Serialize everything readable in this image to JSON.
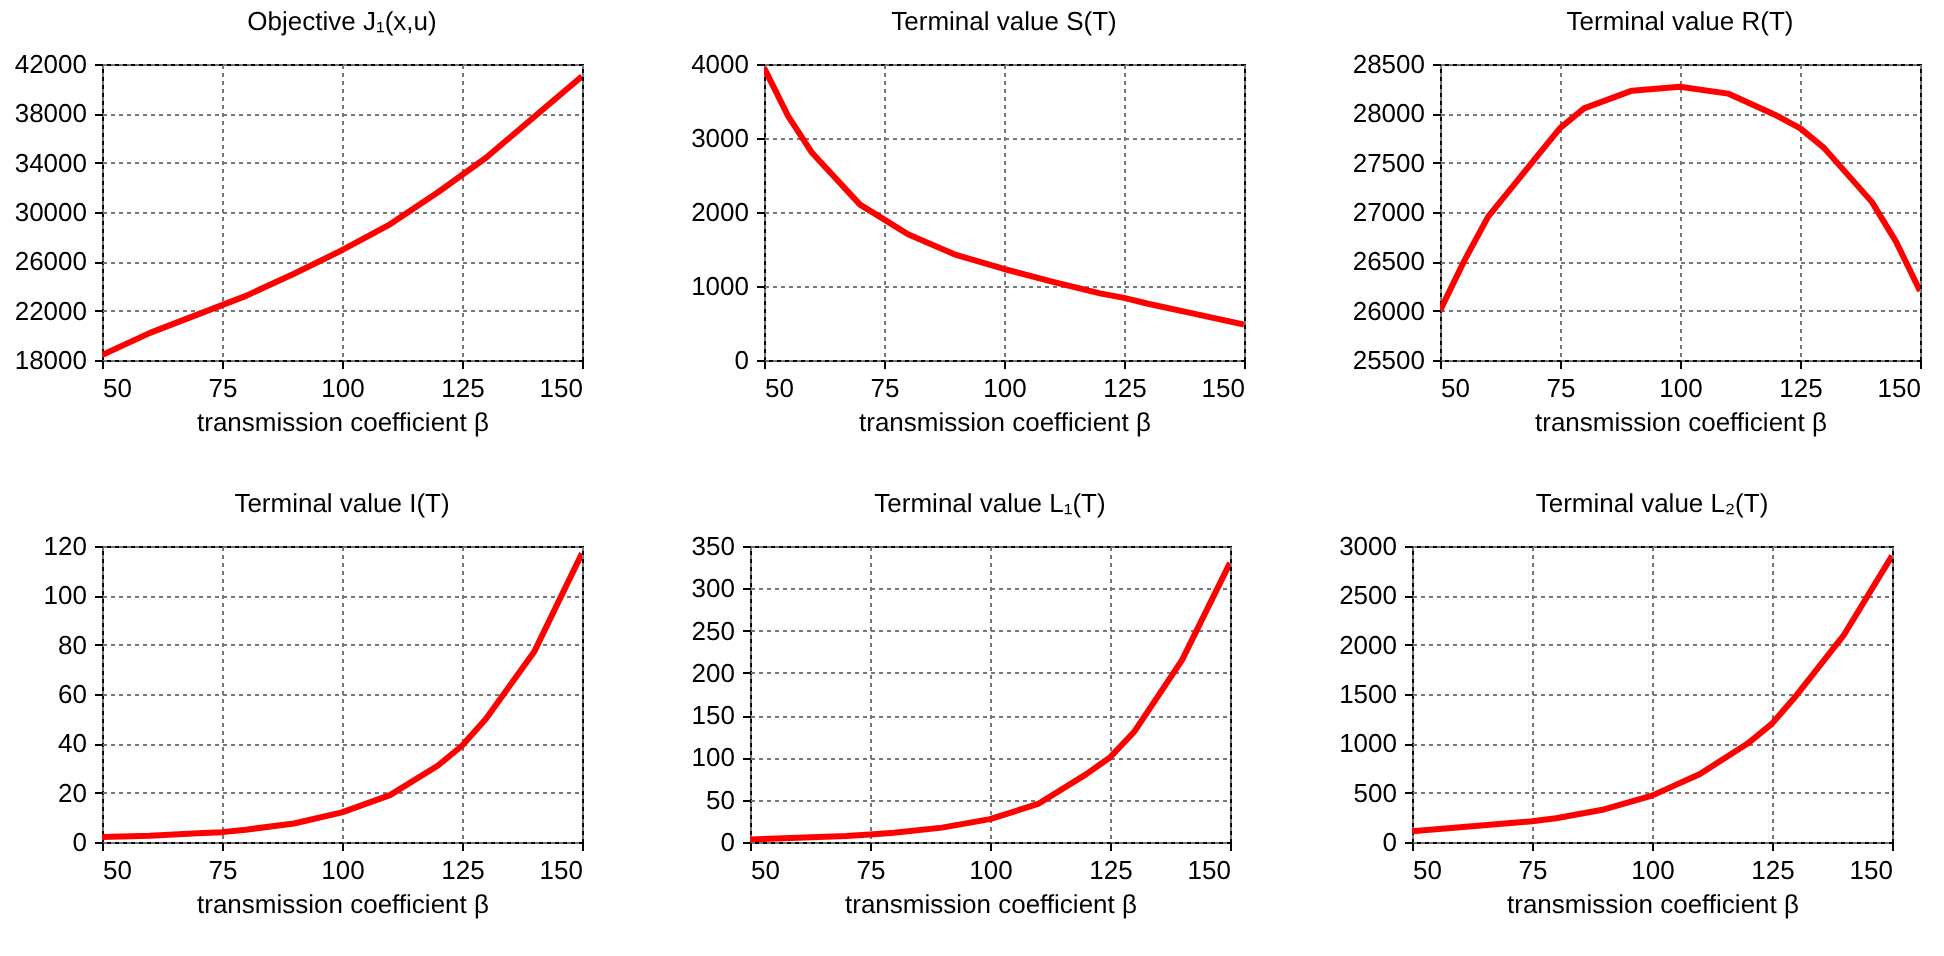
{
  "chart_data": [
    {
      "type": "line",
      "title": "Objective  J₁(x,u)",
      "xlabel": "transmission coefficient  β",
      "x": [
        50,
        60,
        70,
        80,
        90,
        100,
        110,
        120,
        130,
        140,
        150
      ],
      "values": [
        18400,
        20200,
        21700,
        23200,
        25000,
        26900,
        29000,
        31600,
        34400,
        37700,
        41000
      ],
      "color": "#ff0000",
      "xlim": [
        50,
        150
      ],
      "xticks": [
        50,
        75,
        100,
        125,
        150
      ],
      "ylim": [
        18000,
        42000
      ],
      "yticks": [
        18000,
        22000,
        26000,
        30000,
        34000,
        38000,
        42000
      ],
      "grid": true
    },
    {
      "type": "line",
      "title": "Terminal value  S(T)",
      "xlabel": "transmission coefficient  β",
      "x": [
        50,
        55,
        60,
        70,
        75,
        80,
        90,
        100,
        110,
        120,
        125,
        130,
        140,
        150
      ],
      "values": [
        3950,
        3300,
        2800,
        2100,
        1900,
        1700,
        1420,
        1230,
        1060,
        900,
        840,
        760,
        620,
        480
      ],
      "color": "#ff0000",
      "xlim": [
        50,
        150
      ],
      "xticks": [
        50,
        75,
        100,
        125,
        150
      ],
      "ylim": [
        0,
        4000
      ],
      "yticks": [
        0,
        1000,
        2000,
        3000,
        4000
      ],
      "grid": true
    },
    {
      "type": "line",
      "title": "Terminal value  R(T)",
      "xlabel": "transmission coefficient  β",
      "x": [
        50,
        55,
        60,
        70,
        75,
        80,
        90,
        100,
        110,
        120,
        125,
        130,
        140,
        145,
        150
      ],
      "values": [
        26000,
        26500,
        26950,
        27550,
        27850,
        28050,
        28230,
        28270,
        28200,
        27980,
        27850,
        27650,
        27100,
        26700,
        26200
      ],
      "color": "#ff0000",
      "xlim": [
        50,
        150
      ],
      "xticks": [
        50,
        75,
        100,
        125,
        150
      ],
      "ylim": [
        25500,
        28500
      ],
      "yticks": [
        25500,
        26000,
        26500,
        27000,
        27500,
        28000,
        28500
      ],
      "grid": true
    },
    {
      "type": "line",
      "title": "Terminal value  I(T)",
      "xlabel": "transmission coefficient  β",
      "x": [
        50,
        60,
        70,
        75,
        80,
        90,
        100,
        110,
        120,
        125,
        130,
        140,
        150
      ],
      "values": [
        2,
        2.5,
        3.5,
        4,
        5,
        7.5,
        12,
        19,
        31,
        39,
        50,
        77,
        117
      ],
      "color": "#ff0000",
      "xlim": [
        50,
        150
      ],
      "xticks": [
        50,
        75,
        100,
        125,
        150
      ],
      "ylim": [
        0,
        120
      ],
      "yticks": [
        0,
        20,
        40,
        60,
        80,
        100,
        120
      ],
      "grid": true
    },
    {
      "type": "line",
      "title": "Terminal value  L₁(T)",
      "xlabel": "transmission coefficient  β",
      "x": [
        50,
        60,
        70,
        75,
        80,
        90,
        100,
        110,
        120,
        125,
        130,
        140,
        150
      ],
      "values": [
        3,
        5,
        7,
        9,
        11,
        17,
        27,
        45,
        80,
        100,
        130,
        215,
        330
      ],
      "color": "#ff0000",
      "xlim": [
        50,
        150
      ],
      "xticks": [
        50,
        75,
        100,
        125,
        150
      ],
      "ylim": [
        0,
        350
      ],
      "yticks": [
        0,
        50,
        100,
        150,
        200,
        250,
        300,
        350
      ],
      "grid": true
    },
    {
      "type": "line",
      "title": "Terminal value  L₂(T)",
      "xlabel": "transmission coefficient  β",
      "x": [
        50,
        60,
        70,
        75,
        80,
        90,
        100,
        110,
        120,
        125,
        130,
        140,
        150
      ],
      "values": [
        110,
        150,
        190,
        210,
        240,
        330,
        470,
        690,
        1000,
        1200,
        1480,
        2100,
        2900
      ],
      "color": "#ff0000",
      "xlim": [
        50,
        150
      ],
      "xticks": [
        50,
        75,
        100,
        125,
        150
      ],
      "ylim": [
        0,
        3000
      ],
      "yticks": [
        0,
        500,
        1000,
        1500,
        2000,
        2500,
        3000
      ],
      "grid": true
    }
  ]
}
